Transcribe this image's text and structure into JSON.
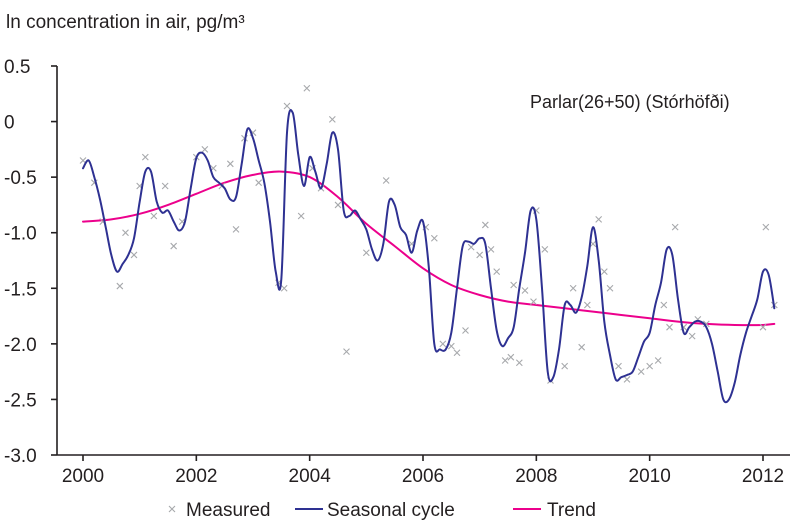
{
  "chart_data": {
    "type": "line",
    "ylabel": "ln concentration in air, pg/m³",
    "annotation": "Parlar(26+50) (Stórhöfði)",
    "xlim": [
      2000,
      2012.3
    ],
    "ylim": [
      -3.0,
      0.5
    ],
    "xticks": [
      2000,
      2002,
      2004,
      2006,
      2008,
      2010,
      2012
    ],
    "xtick_labels": [
      "2000",
      "2002",
      "2004",
      "2006",
      "2008",
      "2010",
      "2012"
    ],
    "yticks": [
      0.5,
      0,
      -0.5,
      -1.0,
      -1.5,
      -2.0,
      -2.5,
      -3.0
    ],
    "ytick_labels": [
      "0.5",
      "0",
      "-0.5",
      "-1.0",
      "-1.5",
      "-2.0",
      "-2.5",
      "-3.0"
    ],
    "series": [
      {
        "name": "Measured",
        "kind": "scatter",
        "color": "#a7a9ac",
        "marker": "x",
        "points": [
          [
            2000.0,
            -0.35
          ],
          [
            2000.2,
            -0.55
          ],
          [
            2000.35,
            -0.9
          ],
          [
            2000.65,
            -1.48
          ],
          [
            2000.75,
            -1.0
          ],
          [
            2000.9,
            -1.2
          ],
          [
            2001.0,
            -0.58
          ],
          [
            2001.1,
            -0.32
          ],
          [
            2001.25,
            -0.85
          ],
          [
            2001.45,
            -0.58
          ],
          [
            2001.6,
            -1.12
          ],
          [
            2001.75,
            -0.9
          ],
          [
            2002.0,
            -0.32
          ],
          [
            2002.15,
            -0.25
          ],
          [
            2002.3,
            -0.42
          ],
          [
            2002.45,
            -0.58
          ],
          [
            2002.6,
            -0.38
          ],
          [
            2002.7,
            -0.97
          ],
          [
            2002.85,
            -0.15
          ],
          [
            2003.0,
            -0.1
          ],
          [
            2003.1,
            -0.55
          ],
          [
            2003.45,
            -1.45
          ],
          [
            2003.55,
            -1.5
          ],
          [
            2003.6,
            0.14
          ],
          [
            2003.85,
            -0.85
          ],
          [
            2003.95,
            0.3
          ],
          [
            2004.05,
            -0.42
          ],
          [
            2004.2,
            -0.6
          ],
          [
            2004.4,
            0.02
          ],
          [
            2004.5,
            -0.75
          ],
          [
            2004.65,
            -2.07
          ],
          [
            2005.0,
            -1.18
          ],
          [
            2005.35,
            -0.53
          ],
          [
            2005.8,
            -1.1
          ],
          [
            2006.05,
            -0.95
          ],
          [
            2006.2,
            -1.05
          ],
          [
            2006.35,
            -2.0
          ],
          [
            2006.5,
            -2.02
          ],
          [
            2006.6,
            -2.08
          ],
          [
            2006.75,
            -1.88
          ],
          [
            2006.85,
            -1.13
          ],
          [
            2007.0,
            -1.2
          ],
          [
            2007.1,
            -0.93
          ],
          [
            2007.2,
            -1.15
          ],
          [
            2007.3,
            -1.35
          ],
          [
            2007.45,
            -2.15
          ],
          [
            2007.55,
            -2.12
          ],
          [
            2007.6,
            -1.47
          ],
          [
            2007.7,
            -2.17
          ],
          [
            2007.8,
            -1.52
          ],
          [
            2007.95,
            -1.62
          ],
          [
            2008.0,
            -0.8
          ],
          [
            2008.15,
            -1.15
          ],
          [
            2008.25,
            -2.33
          ],
          [
            2008.5,
            -2.2
          ],
          [
            2008.65,
            -1.5
          ],
          [
            2008.8,
            -2.03
          ],
          [
            2008.9,
            -1.65
          ],
          [
            2009.0,
            -1.1
          ],
          [
            2009.1,
            -0.88
          ],
          [
            2009.2,
            -1.35
          ],
          [
            2009.3,
            -1.5
          ],
          [
            2009.45,
            -2.2
          ],
          [
            2009.6,
            -2.32
          ],
          [
            2009.85,
            -2.25
          ],
          [
            2010.0,
            -2.2
          ],
          [
            2010.15,
            -2.15
          ],
          [
            2010.25,
            -1.65
          ],
          [
            2010.35,
            -1.85
          ],
          [
            2010.45,
            -0.95
          ],
          [
            2010.6,
            -1.85
          ],
          [
            2010.75,
            -1.93
          ],
          [
            2010.85,
            -1.78
          ],
          [
            2011.0,
            -1.82
          ],
          [
            2012.0,
            -1.85
          ],
          [
            2012.05,
            -0.95
          ],
          [
            2012.2,
            -1.65
          ]
        ]
      },
      {
        "name": "Seasonal cycle",
        "kind": "line",
        "color": "#2e3192",
        "points": [
          [
            2000.0,
            -0.42
          ],
          [
            2000.1,
            -0.35
          ],
          [
            2000.2,
            -0.5
          ],
          [
            2000.3,
            -0.7
          ],
          [
            2000.4,
            -0.95
          ],
          [
            2000.5,
            -1.2
          ],
          [
            2000.6,
            -1.35
          ],
          [
            2000.7,
            -1.28
          ],
          [
            2000.8,
            -1.2
          ],
          [
            2000.9,
            -1.05
          ],
          [
            2001.0,
            -0.72
          ],
          [
            2001.1,
            -0.45
          ],
          [
            2001.2,
            -0.45
          ],
          [
            2001.3,
            -0.72
          ],
          [
            2001.4,
            -0.82
          ],
          [
            2001.5,
            -0.8
          ],
          [
            2001.6,
            -0.9
          ],
          [
            2001.7,
            -0.98
          ],
          [
            2001.8,
            -0.9
          ],
          [
            2001.9,
            -0.6
          ],
          [
            2002.0,
            -0.33
          ],
          [
            2002.1,
            -0.28
          ],
          [
            2002.2,
            -0.35
          ],
          [
            2002.3,
            -0.5
          ],
          [
            2002.4,
            -0.55
          ],
          [
            2002.5,
            -0.6
          ],
          [
            2002.6,
            -0.7
          ],
          [
            2002.7,
            -0.68
          ],
          [
            2002.8,
            -0.38
          ],
          [
            2002.9,
            -0.07
          ],
          [
            2003.0,
            -0.15
          ],
          [
            2003.1,
            -0.35
          ],
          [
            2003.2,
            -0.55
          ],
          [
            2003.3,
            -0.9
          ],
          [
            2003.4,
            -1.35
          ],
          [
            2003.5,
            -1.42
          ],
          [
            2003.6,
            -0.1
          ],
          [
            2003.7,
            0.08
          ],
          [
            2003.8,
            -0.3
          ],
          [
            2003.9,
            -0.58
          ],
          [
            2004.0,
            -0.32
          ],
          [
            2004.1,
            -0.45
          ],
          [
            2004.2,
            -0.6
          ],
          [
            2004.3,
            -0.38
          ],
          [
            2004.4,
            -0.1
          ],
          [
            2004.5,
            -0.25
          ],
          [
            2004.6,
            -0.8
          ],
          [
            2004.7,
            -0.85
          ],
          [
            2004.8,
            -0.8
          ],
          [
            2004.9,
            -0.88
          ],
          [
            2005.0,
            -0.97
          ],
          [
            2005.1,
            -1.15
          ],
          [
            2005.2,
            -1.25
          ],
          [
            2005.3,
            -1.1
          ],
          [
            2005.4,
            -0.72
          ],
          [
            2005.5,
            -0.75
          ],
          [
            2005.6,
            -0.95
          ],
          [
            2005.7,
            -1.02
          ],
          [
            2005.8,
            -1.18
          ],
          [
            2005.9,
            -0.98
          ],
          [
            2006.0,
            -0.9
          ],
          [
            2006.1,
            -1.3
          ],
          [
            2006.2,
            -2.0
          ],
          [
            2006.3,
            -2.05
          ],
          [
            2006.4,
            -2.05
          ],
          [
            2006.5,
            -1.9
          ],
          [
            2006.6,
            -1.5
          ],
          [
            2006.7,
            -1.12
          ],
          [
            2006.8,
            -1.08
          ],
          [
            2006.9,
            -1.1
          ],
          [
            2007.0,
            -1.05
          ],
          [
            2007.1,
            -1.1
          ],
          [
            2007.2,
            -1.5
          ],
          [
            2007.3,
            -1.88
          ],
          [
            2007.4,
            -2.02
          ],
          [
            2007.5,
            -1.95
          ],
          [
            2007.6,
            -1.85
          ],
          [
            2007.7,
            -1.5
          ],
          [
            2007.8,
            -1.18
          ],
          [
            2007.9,
            -0.8
          ],
          [
            2008.0,
            -0.88
          ],
          [
            2008.1,
            -1.5
          ],
          [
            2008.2,
            -2.25
          ],
          [
            2008.3,
            -2.3
          ],
          [
            2008.4,
            -2.05
          ],
          [
            2008.5,
            -1.65
          ],
          [
            2008.6,
            -1.65
          ],
          [
            2008.7,
            -1.72
          ],
          [
            2008.8,
            -1.58
          ],
          [
            2008.9,
            -1.3
          ],
          [
            2009.0,
            -0.95
          ],
          [
            2009.1,
            -1.25
          ],
          [
            2009.2,
            -1.8
          ],
          [
            2009.3,
            -2.1
          ],
          [
            2009.4,
            -2.32
          ],
          [
            2009.5,
            -2.3
          ],
          [
            2009.6,
            -2.28
          ],
          [
            2009.7,
            -2.25
          ],
          [
            2009.8,
            -2.12
          ],
          [
            2009.9,
            -1.98
          ],
          [
            2010.0,
            -1.9
          ],
          [
            2010.1,
            -1.65
          ],
          [
            2010.2,
            -1.45
          ],
          [
            2010.3,
            -1.15
          ],
          [
            2010.4,
            -1.2
          ],
          [
            2010.5,
            -1.6
          ],
          [
            2010.6,
            -1.9
          ],
          [
            2010.7,
            -1.85
          ],
          [
            2010.8,
            -1.8
          ],
          [
            2010.9,
            -1.8
          ],
          [
            2011.0,
            -1.85
          ],
          [
            2011.1,
            -2.0
          ],
          [
            2011.2,
            -2.25
          ],
          [
            2011.3,
            -2.5
          ],
          [
            2011.4,
            -2.5
          ],
          [
            2011.5,
            -2.35
          ],
          [
            2011.6,
            -2.1
          ],
          [
            2011.7,
            -1.9
          ],
          [
            2011.8,
            -1.75
          ],
          [
            2011.9,
            -1.6
          ],
          [
            2012.0,
            -1.35
          ],
          [
            2012.1,
            -1.38
          ],
          [
            2012.2,
            -1.68
          ]
        ]
      },
      {
        "name": "Trend",
        "kind": "line",
        "color": "#ec008c",
        "points": [
          [
            2000.0,
            -0.9
          ],
          [
            2000.5,
            -0.88
          ],
          [
            2001.0,
            -0.83
          ],
          [
            2001.5,
            -0.75
          ],
          [
            2002.0,
            -0.65
          ],
          [
            2002.5,
            -0.55
          ],
          [
            2003.0,
            -0.48
          ],
          [
            2003.5,
            -0.45
          ],
          [
            2004.0,
            -0.5
          ],
          [
            2004.5,
            -0.68
          ],
          [
            2005.0,
            -0.92
          ],
          [
            2005.5,
            -1.12
          ],
          [
            2006.0,
            -1.32
          ],
          [
            2006.5,
            -1.47
          ],
          [
            2007.0,
            -1.56
          ],
          [
            2007.5,
            -1.62
          ],
          [
            2008.0,
            -1.65
          ],
          [
            2008.5,
            -1.68
          ],
          [
            2009.0,
            -1.71
          ],
          [
            2009.5,
            -1.74
          ],
          [
            2010.0,
            -1.77
          ],
          [
            2010.5,
            -1.8
          ],
          [
            2011.0,
            -1.82
          ],
          [
            2011.5,
            -1.83
          ],
          [
            2012.0,
            -1.83
          ],
          [
            2012.2,
            -1.82
          ]
        ]
      }
    ],
    "legend": {
      "position": "bottom",
      "items": [
        {
          "label": "Measured",
          "symbol": "x"
        },
        {
          "label": "Seasonal cycle",
          "symbol": "line"
        },
        {
          "label": "Trend",
          "symbol": "line"
        }
      ]
    },
    "grid": false
  }
}
